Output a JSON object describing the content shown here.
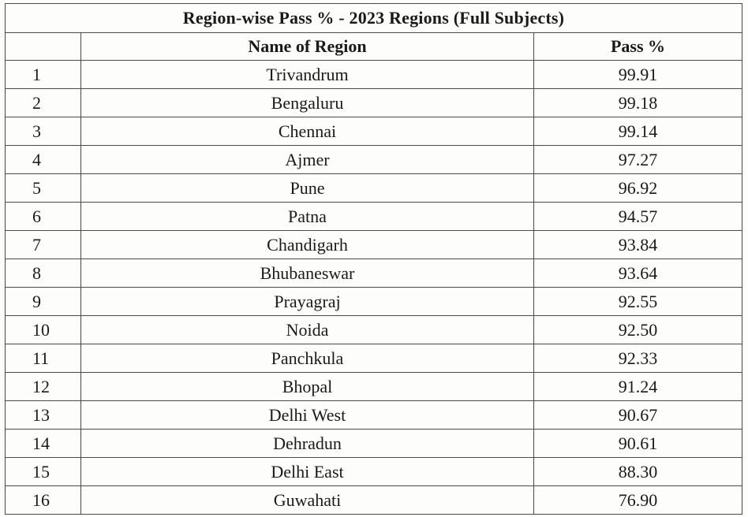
{
  "table": {
    "title": "Region-wise Pass % - 2023 Regions (Full Subjects)",
    "headers": {
      "sno": "",
      "name": "Name of Region",
      "pass": "Pass %"
    },
    "rows": [
      {
        "sno": "1",
        "name": "Trivandrum",
        "pass": "99.91"
      },
      {
        "sno": "2",
        "name": "Bengaluru",
        "pass": "99.18"
      },
      {
        "sno": "3",
        "name": "Chennai",
        "pass": "99.14"
      },
      {
        "sno": "4",
        "name": "Ajmer",
        "pass": "97.27"
      },
      {
        "sno": "5",
        "name": "Pune",
        "pass": "96.92"
      },
      {
        "sno": "6",
        "name": "Patna",
        "pass": "94.57"
      },
      {
        "sno": "7",
        "name": "Chandigarh",
        "pass": "93.84"
      },
      {
        "sno": "8",
        "name": "Bhubaneswar",
        "pass": "93.64"
      },
      {
        "sno": "9",
        "name": "Prayagraj",
        "pass": "92.55"
      },
      {
        "sno": "10",
        "name": "Noida",
        "pass": "92.50"
      },
      {
        "sno": "11",
        "name": "Panchkula",
        "pass": "92.33"
      },
      {
        "sno": "12",
        "name": "Bhopal",
        "pass": "91.24"
      },
      {
        "sno": "13",
        "name": "Delhi West",
        "pass": "90.67"
      },
      {
        "sno": "14",
        "name": "Dehradun",
        "pass": "90.61"
      },
      {
        "sno": "15",
        "name": "Delhi East",
        "pass": "88.30"
      },
      {
        "sno": "16",
        "name": "Guwahati",
        "pass": "76.90"
      }
    ]
  }
}
